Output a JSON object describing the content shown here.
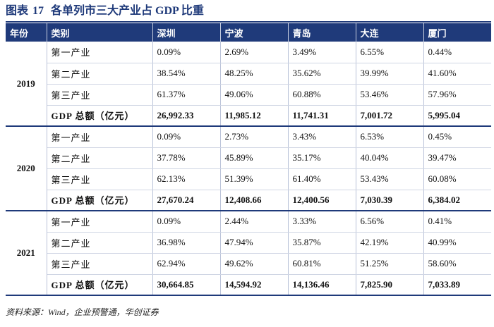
{
  "title": {
    "label": "图表",
    "number": "17",
    "text": "各单列市三大产业占 GDP 比重"
  },
  "header": [
    "年份",
    "类别",
    "深圳",
    "宁波",
    "青岛",
    "大连",
    "厦门"
  ],
  "groups": [
    {
      "year": "2019",
      "rows": [
        {
          "category": "第一产业",
          "values": [
            "0.09%",
            "2.69%",
            "3.49%",
            "6.55%",
            "0.44%"
          ]
        },
        {
          "category": "第二产业",
          "values": [
            "38.54%",
            "48.25%",
            "35.62%",
            "39.99%",
            "41.60%"
          ]
        },
        {
          "category": "第三产业",
          "values": [
            "61.37%",
            "49.06%",
            "60.88%",
            "53.46%",
            "57.96%"
          ]
        },
        {
          "category": "GDP 总额（亿元）",
          "values": [
            "26,992.33",
            "11,985.12",
            "11,741.31",
            "7,001.72",
            "5,995.04"
          ]
        }
      ]
    },
    {
      "year": "2020",
      "rows": [
        {
          "category": "第一产业",
          "values": [
            "0.09%",
            "2.73%",
            "3.43%",
            "6.53%",
            "0.45%"
          ]
        },
        {
          "category": "第二产业",
          "values": [
            "37.78%",
            "45.89%",
            "35.17%",
            "40.04%",
            "39.47%"
          ]
        },
        {
          "category": "第三产业",
          "values": [
            "62.13%",
            "51.39%",
            "61.40%",
            "53.43%",
            "60.08%"
          ]
        },
        {
          "category": "GDP 总额（亿元）",
          "values": [
            "27,670.24",
            "12,408.66",
            "12,400.56",
            "7,030.39",
            "6,384.02"
          ]
        }
      ]
    },
    {
      "year": "2021",
      "rows": [
        {
          "category": "第一产业",
          "values": [
            "0.09%",
            "2.44%",
            "3.33%",
            "6.56%",
            "0.41%"
          ]
        },
        {
          "category": "第二产业",
          "values": [
            "36.98%",
            "47.94%",
            "35.87%",
            "42.19%",
            "40.99%"
          ]
        },
        {
          "category": "第三产业",
          "values": [
            "62.94%",
            "49.62%",
            "60.81%",
            "51.25%",
            "58.60%"
          ]
        },
        {
          "category": "GDP 总额（亿元）",
          "values": [
            "30,664.85",
            "14,594.92",
            "14,136.46",
            "7,825.90",
            "7,033.89"
          ]
        }
      ]
    }
  ],
  "source": "资料来源：Wind，企业预警通，华创证券",
  "colors": {
    "header_bg": "#1f3a7a",
    "title": "#1f3a7a"
  }
}
